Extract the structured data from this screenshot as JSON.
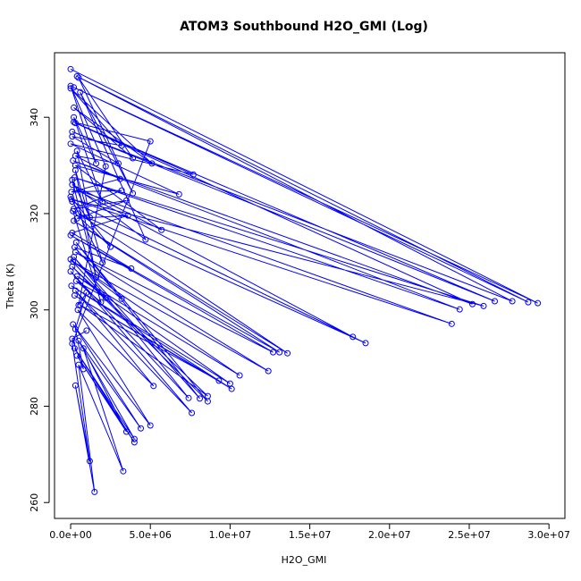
{
  "chart_data": {
    "type": "line",
    "title": "ATOM3 Southbound H2O_GMI (Log)",
    "x_label": "H2O_GMI",
    "y_label": "Theta (K)",
    "series": [
      {
        "color": "#0000ff",
        "x": [
          0,
          29300000,
          200000,
          28700000,
          400000,
          27700000,
          100000,
          26600000,
          300000,
          25200000,
          150000,
          24400000,
          250000,
          25900000,
          50000,
          23900000,
          350000,
          17700000,
          100000,
          18500000,
          500000,
          13600000,
          200000,
          13100000,
          0,
          12700000,
          300000,
          12400000,
          150000,
          10600000,
          400000,
          10000000,
          50000,
          10100000,
          250000,
          9300000,
          600000,
          8600000,
          100000,
          8600000,
          350000,
          8100000,
          200000,
          7400000,
          0,
          7600000,
          300000,
          5200000,
          450000,
          5000000,
          150000,
          4400000,
          500000,
          4000000,
          250000,
          4000000,
          400000,
          3500000,
          800000,
          3300000,
          500000,
          1500000,
          300000,
          1200000,
          100000,
          5000000,
          200000,
          7700000,
          0,
          6800000,
          300000,
          5700000,
          100000,
          4700000,
          600000,
          3900000,
          500000,
          3900000,
          200000,
          5100000,
          0,
          3200000,
          100000,
          3000000,
          300000,
          3100000,
          50000,
          3200000,
          200000,
          3500000,
          400000,
          3600000,
          100000,
          3800000,
          250000,
          3200000,
          0,
          2200000,
          350000,
          1900000,
          150000,
          2500000,
          0,
          2000000,
          300000,
          1600000,
          100000,
          1200000,
          400000,
          2000000,
          200000,
          1600000,
          0,
          2200000,
          500000,
          1000000,
          300000,
          800000,
          100000,
          1000000
        ],
        "values": [
          350.0,
          301.4,
          346.2,
          301.6,
          348.5,
          301.8,
          337.0,
          301.8,
          338.8,
          301.2,
          331.0,
          300.1,
          327.5,
          300.8,
          323.0,
          297.1,
          325.0,
          294.4,
          322.5,
          293.1,
          320.0,
          291.0,
          318.5,
          291.2,
          315.5,
          291.2,
          312.0,
          287.3,
          310.0,
          286.4,
          307.0,
          284.7,
          305.0,
          283.6,
          303.0,
          285.3,
          301.0,
          282.1,
          309.0,
          281.0,
          314.0,
          281.6,
          311.0,
          281.7,
          308.0,
          278.6,
          304.0,
          284.2,
          300.0,
          276.0,
          297.0,
          275.4,
          293.6,
          273.2,
          292.0,
          272.5,
          290.5,
          274.7,
          292.0,
          266.5,
          288.6,
          262.2,
          284.3,
          268.6,
          293.0,
          335.0,
          339.0,
          328.1,
          334.5,
          324.0,
          330.0,
          316.6,
          326.0,
          314.6,
          345.2,
          324.2,
          348.2,
          331.5,
          342.0,
          330.4,
          346.0,
          334.1,
          336.0,
          330.4,
          332.0,
          327.2,
          324.5,
          324.8,
          321.0,
          322.7,
          319.0,
          319.6,
          316.0,
          308.6,
          313.0,
          302.3,
          310.5,
          302.5,
          306.0,
          301.6,
          320.5,
          313.1,
          323.5,
          309.8,
          329.0,
          306.8,
          327.0,
          319.2,
          333.0,
          322.4,
          340.0,
          330.4,
          346.5,
          329.8,
          301.0,
          303.6,
          296.0,
          287.7,
          294.0,
          295.7
        ]
      }
    ],
    "xlim": [
      -1010000,
      31000000
    ],
    "xticks": [
      {
        "value": 0,
        "label": "0.0e+00"
      },
      {
        "value": 5000000,
        "label": "5.0e+06"
      },
      {
        "value": 10000000,
        "label": "1.0e+07"
      },
      {
        "value": 15000000,
        "label": "1.5e+07"
      },
      {
        "value": 20000000,
        "label": "2.0e+07"
      },
      {
        "value": 25000000,
        "label": "2.5e+07"
      },
      {
        "value": 30000000,
        "label": "3.0e+07"
      }
    ],
    "ylim": [
      256.7,
      353.4
    ],
    "yticks": [
      260,
      280,
      300,
      320,
      340
    ],
    "markers": "open-circle"
  }
}
